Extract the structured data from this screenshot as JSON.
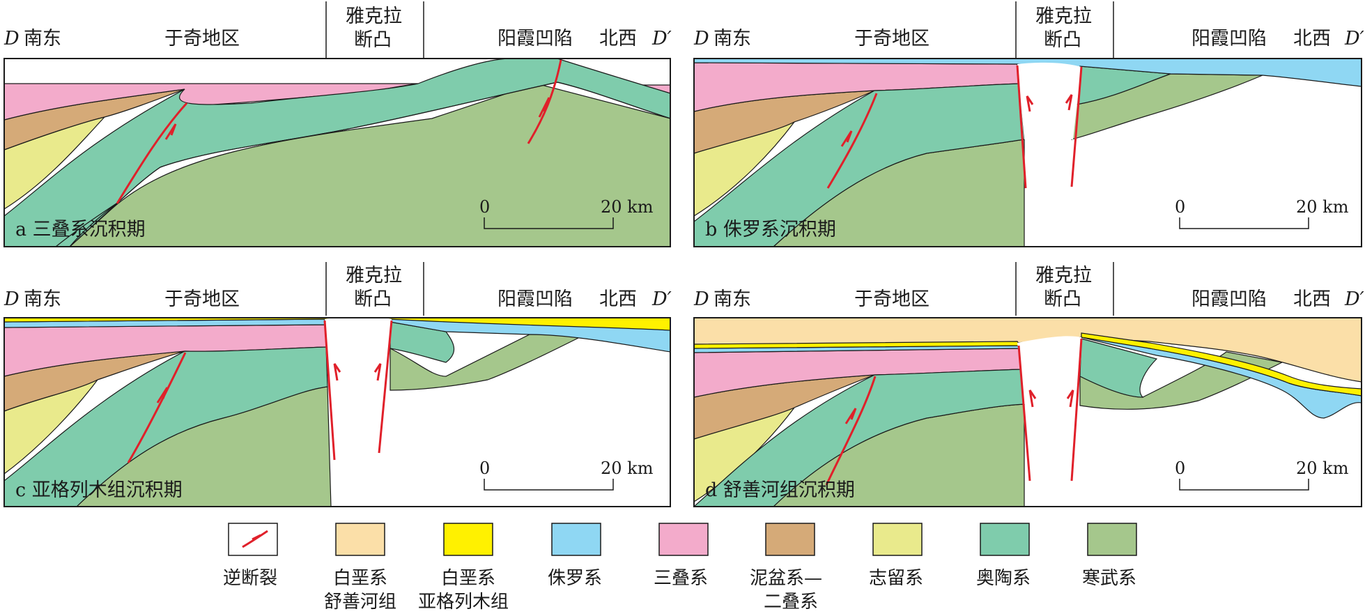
{
  "colors": {
    "cretaceous_shushanhe": "#fbdfa8",
    "cretaceous_yageliemu": "#fff100",
    "jurassic": "#8fd7f3",
    "triassic": "#f3abcb",
    "devonian_permian": "#d5aa78",
    "silurian": "#e9ea8c",
    "ordovician": "#7fccac",
    "cambrian": "#a5c78c",
    "fault": "#e0202a",
    "outline": "#1a1a1a"
  },
  "panels": [
    {
      "id": "a",
      "header": {
        "left_letter": "D",
        "left_direction": "南东",
        "region_left": "于奇地区",
        "uplift_line1": "雅克拉",
        "uplift_line2": "断凸",
        "region_right": "阳霞凹陷",
        "right_direction": "北西",
        "right_letter": "D′"
      },
      "label": "a 三叠系沉积期",
      "scale": {
        "zero": "0",
        "end": "20 km"
      }
    },
    {
      "id": "b",
      "header": {
        "left_letter": "D",
        "left_direction": "南东",
        "region_left": "于奇地区",
        "uplift_line1": "雅克拉",
        "uplift_line2": "断凸",
        "region_right": "阳霞凹陷",
        "right_direction": "北西",
        "right_letter": "D′"
      },
      "label": "b 侏罗系沉积期",
      "scale": {
        "zero": "0",
        "end": "20 km"
      }
    },
    {
      "id": "c",
      "header": {
        "left_letter": "D",
        "left_direction": "南东",
        "region_left": "于奇地区",
        "uplift_line1": "雅克拉",
        "uplift_line2": "断凸",
        "region_right": "阳霞凹陷",
        "right_direction": "北西",
        "right_letter": "D′"
      },
      "label": "c 亚格列木组沉积期",
      "scale": {
        "zero": "0",
        "end": "20 km"
      }
    },
    {
      "id": "d",
      "header": {
        "left_letter": "D",
        "left_direction": "南东",
        "region_left": "于奇地区",
        "uplift_line1": "雅克拉",
        "uplift_line2": "断凸",
        "region_right": "阳霞凹陷",
        "right_direction": "北西",
        "right_letter": "D′"
      },
      "label": "d 舒善河组沉积期",
      "scale": {
        "zero": "0",
        "end": "20 km"
      }
    }
  ],
  "legend": [
    {
      "key": "fault",
      "line1": "逆断裂",
      "line2": ""
    },
    {
      "key": "cretaceous_shushanhe",
      "line1": "白垩系",
      "line2": "舒善河组"
    },
    {
      "key": "cretaceous_yageliemu",
      "line1": "白垩系",
      "line2": "亚格列木组"
    },
    {
      "key": "jurassic",
      "line1": "侏罗系",
      "line2": ""
    },
    {
      "key": "triassic",
      "line1": "三叠系",
      "line2": ""
    },
    {
      "key": "devonian_permian",
      "line1": "泥盆系—",
      "line2": "二叠系"
    },
    {
      "key": "silurian",
      "line1": "志留系",
      "line2": ""
    },
    {
      "key": "ordovician",
      "line1": "奥陶系",
      "line2": ""
    },
    {
      "key": "cambrian",
      "line1": "寒武系",
      "line2": ""
    }
  ]
}
